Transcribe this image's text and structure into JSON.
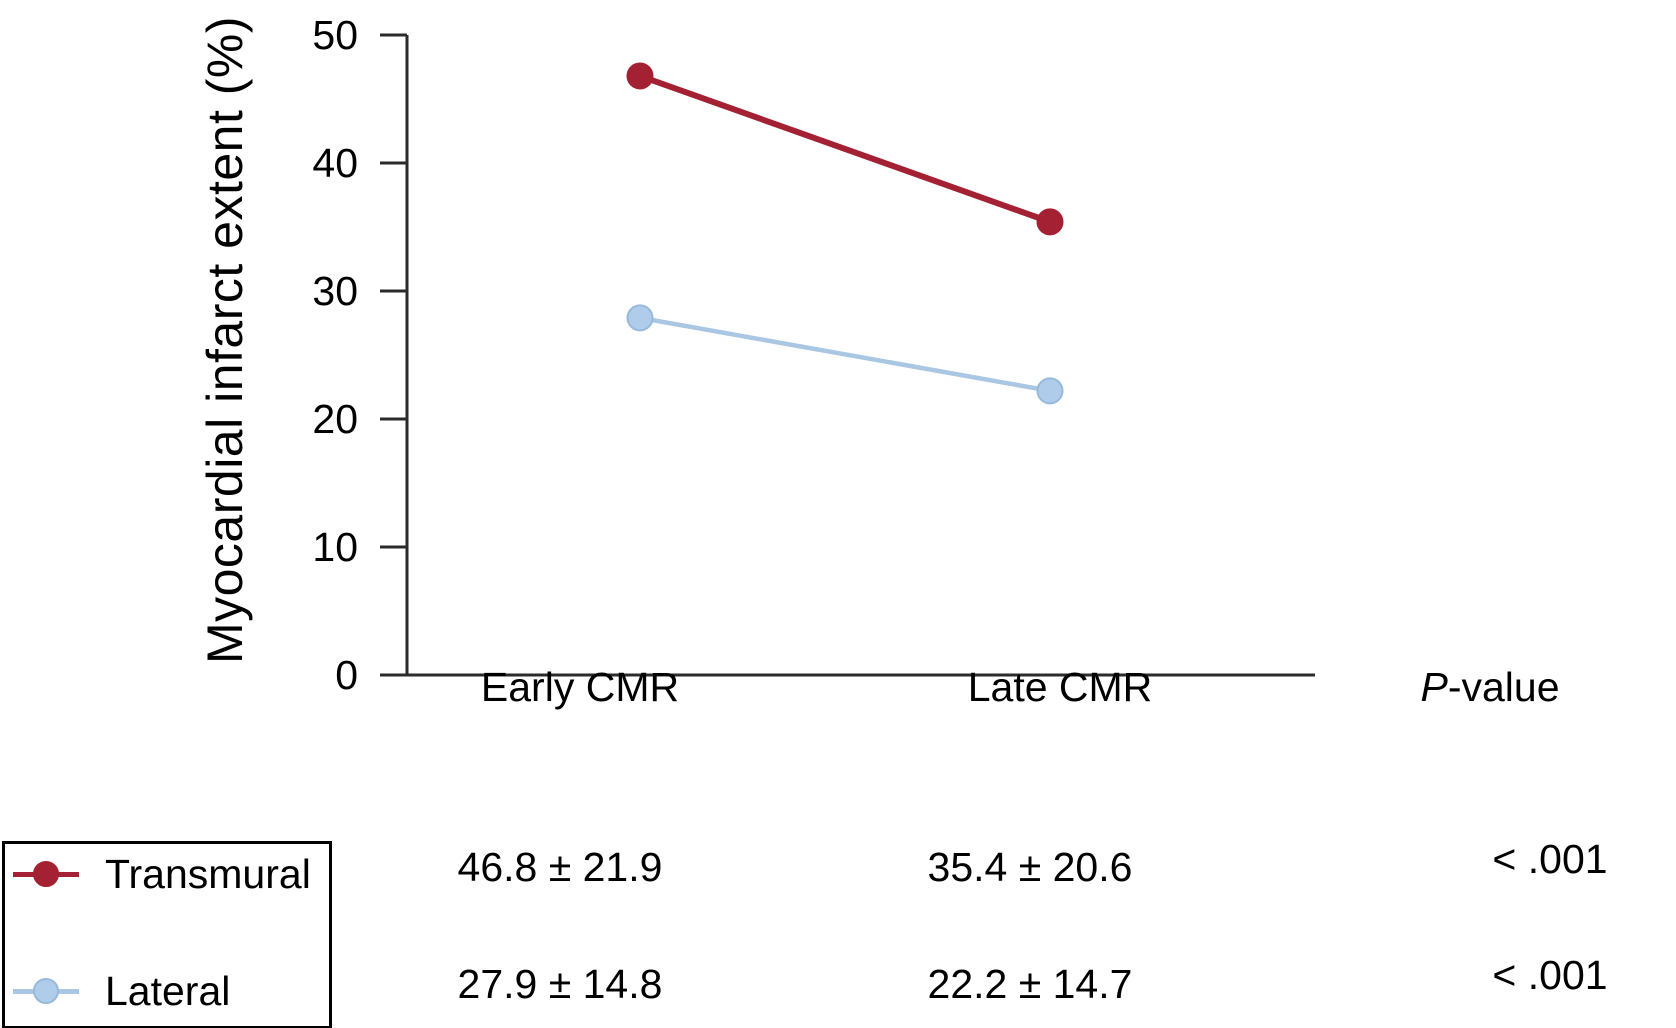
{
  "figure": {
    "y_axis_label": "Myocardial infarct extent (%)"
  },
  "columns": {
    "early_label": "Early CMR",
    "late_label": "Late CMR",
    "p_italic": "P",
    "p_rest": "-value"
  },
  "legend": {
    "items": [
      {
        "label": "Transmural",
        "color": "#A32132"
      },
      {
        "label": "Lateral",
        "color": "#A9C6E3"
      }
    ]
  },
  "table": {
    "rows": [
      {
        "series": "Transmural",
        "early": "46.8 ± 21.9",
        "late": "35.4 ± 20.6",
        "p": "< .001"
      },
      {
        "series": "Lateral",
        "early": "27.9 ± 14.8",
        "late": "22.2 ± 14.7",
        "p": "< .001"
      }
    ]
  },
  "chart_data": {
    "type": "line",
    "title": "",
    "xlabel": "",
    "ylabel": "Myocardial infarct extent (%)",
    "categories": [
      "Early CMR",
      "Late CMR"
    ],
    "series": [
      {
        "name": "Transmural",
        "values": [
          46.8,
          35.4
        ],
        "sd": [
          21.9,
          20.6
        ],
        "p_value": "< .001",
        "color": "#A32132",
        "marker_fill": "#A32132",
        "marker_stroke": "#A32132",
        "line_width": 6
      },
      {
        "name": "Lateral",
        "values": [
          27.9,
          22.2
        ],
        "sd": [
          14.8,
          14.7
        ],
        "p_value": "< .001",
        "color": "#A9C6E3",
        "marker_fill": "#AFCCEA",
        "marker_stroke": "#97B9DC",
        "line_width": 4.5
      }
    ],
    "ylim": [
      0,
      50
    ],
    "yticks": [
      0,
      10,
      20,
      30,
      40,
      50
    ],
    "grid": false,
    "legend_position": "bottom-left",
    "axis_color": "#2b2b2b"
  }
}
